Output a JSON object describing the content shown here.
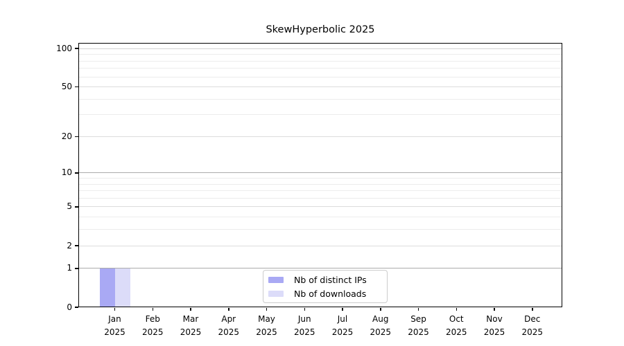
{
  "chart_data": {
    "type": "bar",
    "title": "SkewHyperbolic 2025",
    "x_tick_line1": [
      "Jan",
      "Feb",
      "Mar",
      "Apr",
      "May",
      "Jun",
      "Jul",
      "Aug",
      "Sep",
      "Oct",
      "Nov",
      "Dec"
    ],
    "x_tick_line2": "2025",
    "series": [
      {
        "name": "Nb of distinct IPs",
        "color": "#a9a9f4",
        "values": [
          1,
          0,
          0,
          0,
          0,
          0,
          0,
          0,
          0,
          0,
          0,
          0
        ]
      },
      {
        "name": "Nb of downloads",
        "color": "#dcdcf9",
        "values": [
          1,
          0,
          0,
          0,
          0,
          0,
          0,
          0,
          0,
          0,
          0,
          0
        ]
      }
    ],
    "y_scale": "log10(1+y)",
    "y_ticks_labels": [
      "0",
      "1",
      "2",
      "5",
      "10",
      "20",
      "50",
      "100"
    ],
    "y_ticks_values": [
      0,
      1,
      2,
      5,
      10,
      20,
      50,
      100
    ],
    "y_minor_values": [
      3,
      4,
      6,
      7,
      8,
      9,
      30,
      40,
      60,
      70,
      80,
      90
    ],
    "ylim": [
      0,
      110
    ],
    "grid": "horizontal",
    "legend_position": "inside-bottom-center"
  }
}
